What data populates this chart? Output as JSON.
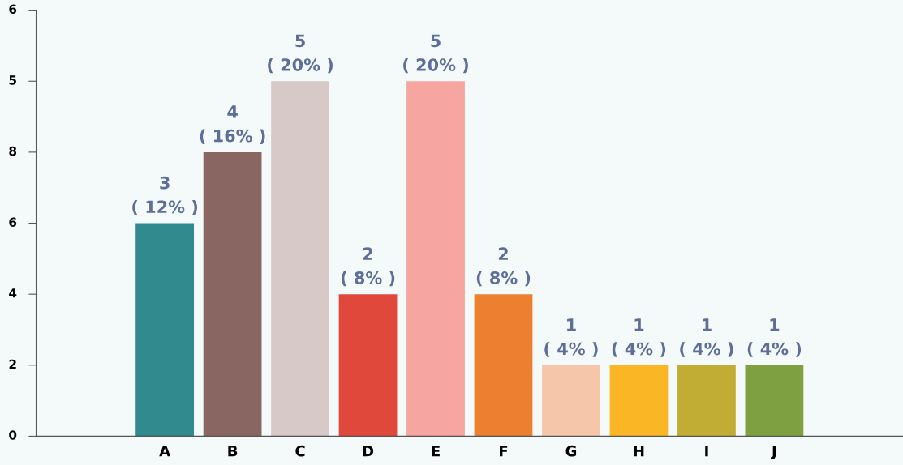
{
  "chart_data": {
    "type": "bar",
    "categories": [
      "A",
      "B",
      "C",
      "D",
      "E",
      "F",
      "G",
      "H",
      "I",
      "J"
    ],
    "values": [
      3,
      4,
      5,
      2,
      5,
      2,
      1,
      1,
      1,
      1
    ],
    "colors": [
      "#318a8d",
      "#8a6663",
      "#d6c9c8",
      "#e1483c",
      "#f6a5a0",
      "#ed7f30",
      "#f5c6a9",
      "#fbb625",
      "#c1ad34",
      "#7fa040"
    ],
    "value_labels": [
      "3\n( 12% )",
      "4\n( 16% )",
      "5\n( 20% )",
      "2\n( 8% )",
      "5\n( 20% )",
      "2\n( 8% )",
      "1\n( 4% )",
      "1\n( 4% )",
      "1\n( 4% )",
      "1\n( 4% )"
    ],
    "annotations": [
      "0",
      "2",
      "4",
      "6",
      "8",
      "5",
      "6"
    ],
    "grid": false
  }
}
